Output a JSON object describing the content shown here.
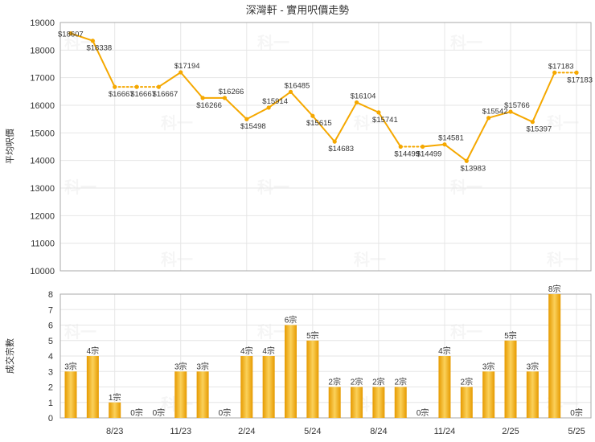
{
  "title": "深灣軒 - 實用呎價走勢",
  "watermark": "科一",
  "chart_data": {
    "type": "line+bar",
    "x_labels": [
      "",
      "",
      "8/23",
      "",
      "",
      "11/23",
      "",
      "",
      "2/24",
      "",
      "",
      "5/24",
      "",
      "",
      "8/24",
      "",
      "",
      "11/24",
      "",
      "",
      "2/25",
      "",
      "",
      "5/25"
    ],
    "price": {
      "ylabel": "平均呎價",
      "ylim": [
        10000,
        19000
      ],
      "yticks": [
        10000,
        11000,
        12000,
        13000,
        14000,
        15000,
        16000,
        17000,
        18000,
        19000
      ],
      "values": [
        18607,
        18338,
        16667,
        16667,
        16667,
        17194,
        16266,
        16266,
        15498,
        15914,
        16485,
        15615,
        14683,
        16104,
        15741,
        14499,
        14499,
        14581,
        13983,
        15542,
        15766,
        15397,
        17183,
        17183
      ],
      "labels": [
        "$18607",
        "$18338",
        "$16667",
        "$16667",
        "$16667",
        "$17194",
        "$16266",
        "$16266",
        "$15498",
        "$15914",
        "$16485",
        "$15615",
        "$14683",
        "$16104",
        "$15741",
        "$14499",
        "$14499",
        "$14581",
        "$13983",
        "$15542",
        "$15766",
        "$15397",
        "$17183",
        "$17183"
      ],
      "dotted_segments": [
        [
          2,
          3
        ],
        [
          3,
          4
        ],
        [
          15,
          16
        ],
        [
          22,
          23
        ]
      ],
      "color": "#f5a800"
    },
    "count": {
      "ylabel": "成交宗數",
      "ylim": [
        0,
        8
      ],
      "yticks": [
        0,
        1,
        2,
        3,
        4,
        5,
        6,
        7,
        8
      ],
      "values": [
        3,
        4,
        1,
        0,
        0,
        3,
        3,
        0,
        4,
        4,
        6,
        5,
        2,
        2,
        2,
        2,
        0,
        4,
        2,
        3,
        5,
        3,
        8,
        0
      ],
      "labels": [
        "3宗",
        "4宗",
        "1宗",
        "0宗",
        "0宗",
        "3宗",
        "3宗",
        "0宗",
        "4宗",
        "4宗",
        "6宗",
        "5宗",
        "2宗",
        "2宗",
        "2宗",
        "2宗",
        "0宗",
        "4宗",
        "2宗",
        "3宗",
        "5宗",
        "3宗",
        "8宗",
        "0宗"
      ],
      "color_light": "#fbd15a",
      "color_dark": "#e69a00"
    },
    "grid": true
  }
}
